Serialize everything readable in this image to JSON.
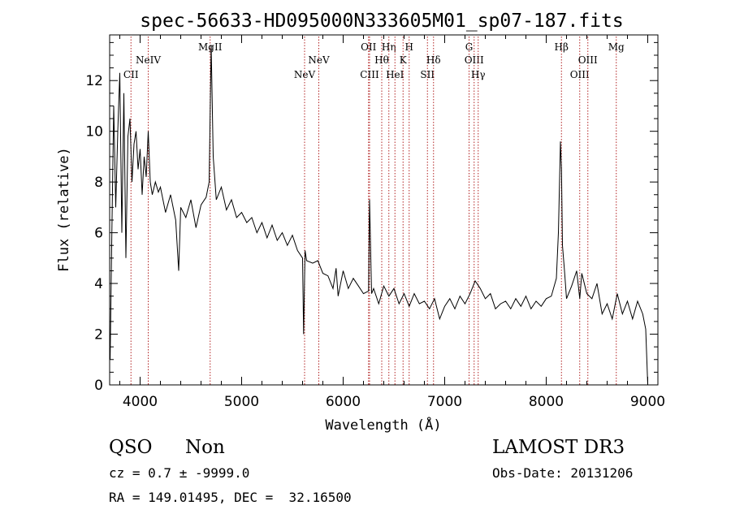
{
  "chart_data": {
    "type": "line",
    "title": "spec-56633-HD095000N333605M01_sp07-187.fits",
    "xlabel": "Wavelength (Å)",
    "ylabel": "Flux (relative)",
    "xlim": [
      3700,
      9100
    ],
    "ylim": [
      0,
      13.8
    ],
    "xticks": [
      4000,
      5000,
      6000,
      7000,
      8000,
      9000
    ],
    "xminor_step": 200,
    "yticks": [
      0,
      2,
      4,
      6,
      8,
      10,
      12
    ],
    "yminor_step": 0.5,
    "grid": false,
    "series": [
      {
        "x": [
          3705,
          3720,
          3740,
          3760,
          3780,
          3800,
          3820,
          3840,
          3860,
          3880,
          3900,
          3920,
          3940,
          3960,
          3980,
          4000,
          4020,
          4040,
          4060,
          4080,
          4100,
          4120,
          4150,
          4180,
          4200,
          4250,
          4300,
          4350,
          4380,
          4400,
          4450,
          4500,
          4550,
          4600,
          4650,
          4680,
          4700,
          4720,
          4750,
          4800,
          4850,
          4900,
          4950,
          5000,
          5050,
          5100,
          5150,
          5200,
          5250,
          5300,
          5350,
          5400,
          5450,
          5500,
          5550,
          5600,
          5610,
          5625,
          5640,
          5700,
          5750,
          5800,
          5850,
          5900,
          5930,
          5950,
          6000,
          6050,
          6100,
          6150,
          6200,
          6250,
          6260,
          6280,
          6300,
          6350,
          6400,
          6450,
          6500,
          6550,
          6600,
          6650,
          6700,
          6750,
          6800,
          6850,
          6900,
          6950,
          7000,
          7050,
          7100,
          7150,
          7200,
          7250,
          7300,
          7350,
          7400,
          7450,
          7500,
          7550,
          7600,
          7650,
          7700,
          7750,
          7800,
          7850,
          7900,
          7950,
          8000,
          8050,
          8100,
          8120,
          8140,
          8150,
          8160,
          8180,
          8200,
          8250,
          8300,
          8330,
          8350,
          8400,
          8450,
          8500,
          8550,
          8600,
          8650,
          8700,
          8750,
          8800,
          8850,
          8900,
          8950,
          8980,
          9000
        ],
        "y": [
          1.0,
          5.5,
          11.0,
          7.0,
          10.0,
          12.3,
          6.0,
          11.5,
          5.0,
          9.8,
          10.5,
          8.0,
          9.5,
          10.0,
          8.5,
          9.3,
          7.5,
          9.0,
          8.2,
          10.0,
          8.0,
          7.5,
          8.0,
          7.6,
          7.8,
          6.8,
          7.5,
          6.5,
          4.5,
          7.0,
          6.6,
          7.3,
          6.2,
          7.1,
          7.4,
          8.0,
          13.4,
          9.0,
          7.3,
          7.8,
          6.9,
          7.3,
          6.6,
          6.8,
          6.4,
          6.6,
          6.0,
          6.4,
          5.8,
          6.3,
          5.7,
          6.0,
          5.5,
          5.9,
          5.3,
          5.0,
          2.0,
          5.3,
          4.9,
          4.8,
          4.9,
          4.4,
          4.3,
          3.8,
          4.6,
          3.5,
          4.5,
          3.8,
          4.2,
          3.9,
          3.6,
          3.7,
          7.3,
          3.6,
          3.8,
          3.2,
          3.9,
          3.5,
          3.8,
          3.2,
          3.6,
          3.1,
          3.6,
          3.2,
          3.3,
          3.0,
          3.4,
          2.6,
          3.1,
          3.4,
          3.0,
          3.5,
          3.2,
          3.6,
          4.1,
          3.8,
          3.4,
          3.6,
          3.0,
          3.2,
          3.3,
          3.0,
          3.4,
          3.1,
          3.5,
          3.0,
          3.3,
          3.1,
          3.4,
          3.5,
          4.2,
          6.0,
          9.6,
          8.5,
          5.5,
          4.5,
          3.4,
          3.9,
          4.5,
          3.4,
          4.4,
          3.6,
          3.4,
          4.0,
          2.8,
          3.2,
          2.6,
          3.6,
          2.8,
          3.3,
          2.6,
          3.3,
          2.8,
          2.2,
          0.0
        ]
      }
    ],
    "lines": [
      {
        "x": 3910,
        "label": "CII",
        "row": 3
      },
      {
        "x": 4080,
        "label": "NeIV",
        "row": 2
      },
      {
        "x": 4690,
        "label": "MgII",
        "row": 1
      },
      {
        "x": 5620,
        "label": "NeV",
        "row": 3
      },
      {
        "x": 5760,
        "label": "NeV",
        "row": 2
      },
      {
        "x": 6250,
        "label": "OII",
        "row": 1
      },
      {
        "x": 6260,
        "label": "CIII",
        "row": 3
      },
      {
        "x": 6380,
        "label": "Hθ",
        "row": 2
      },
      {
        "x": 6450,
        "label": "Hη",
        "row": 1
      },
      {
        "x": 6510,
        "label": "HeI",
        "row": 3
      },
      {
        "x": 6590,
        "label": "K",
        "row": 2
      },
      {
        "x": 6650,
        "label": "H",
        "row": 1
      },
      {
        "x": 6830,
        "label": "SII",
        "row": 3
      },
      {
        "x": 6890,
        "label": "Hδ",
        "row": 2
      },
      {
        "x": 7240,
        "label": "G",
        "row": 1
      },
      {
        "x": 7290,
        "label": "OIII",
        "row": 2
      },
      {
        "x": 7330,
        "label": "Hγ",
        "row": 3
      },
      {
        "x": 8150,
        "label": "Hβ",
        "row": 1
      },
      {
        "x": 8330,
        "label": "OIII",
        "row": 3
      },
      {
        "x": 8410,
        "label": "OIII",
        "row": 2
      },
      {
        "x": 8690,
        "label": "Mg",
        "row": 1
      }
    ],
    "line_color": "#b22222"
  },
  "info": {
    "class": "QSO",
    "subclass": "Non",
    "cz": "cz = 0.7 ± -9999.0",
    "radec": "RA = 149.01495, DEC =  32.16500",
    "survey": "LAMOST DR3",
    "obsdate": "Obs-Date: 20131206"
  }
}
